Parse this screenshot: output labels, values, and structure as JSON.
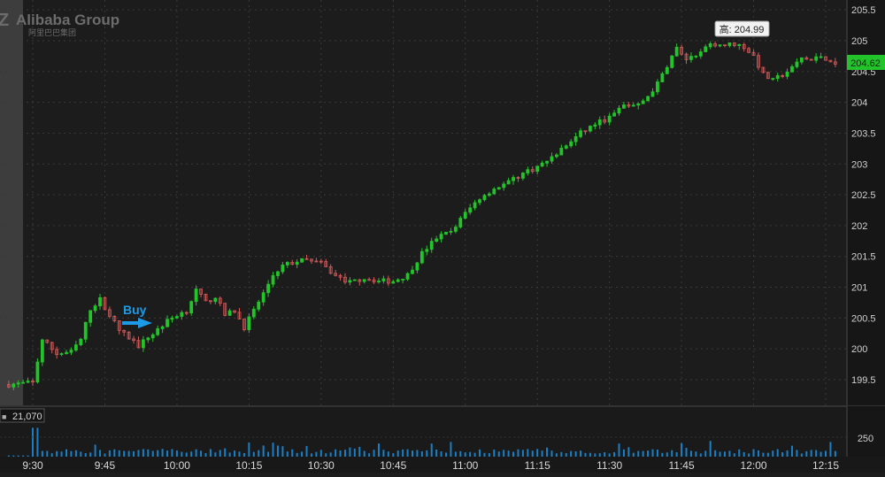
{
  "logo": {
    "brand": "Alibaba Group",
    "brand_cn": "阿里巴巴集团"
  },
  "volume_label": "21,070",
  "volume_axis_label": "250",
  "current_price_label": "204.62",
  "high_tag": "高: 204.99",
  "buy_annotation": "Buy",
  "colors": {
    "background": "#1c1c1c",
    "up": "#22c42a",
    "down": "#d45a5a",
    "volume": "#1a7fc4",
    "grid": "#3a3a3a",
    "buy_arrow": "#1e9be6",
    "price_tag": "#22c42a"
  },
  "chart_data": {
    "type": "candlestick",
    "interval": "1 minute",
    "y_ticks": [
      "205.5",
      "205",
      "204.5",
      "204",
      "203.5",
      "203",
      "202.5",
      "202",
      "201.5",
      "201",
      "200.5",
      "200",
      "199.5"
    ],
    "x_ticks": [
      "9:30",
      "9:45",
      "10:00",
      "10:15",
      "10:30",
      "10:45",
      "11:00",
      "11:15",
      "11:30",
      "11:45",
      "12:00",
      "12:15"
    ],
    "ylim": [
      199.2,
      205.65
    ],
    "time_range": [
      "9:30",
      "12:17"
    ],
    "high": 204.99,
    "last": 204.62,
    "volume_ylim": [
      0,
      400
    ],
    "price_path": [
      [
        "9:25",
        199.42
      ],
      [
        "9:30",
        199.45
      ],
      [
        "9:32",
        200.15
      ],
      [
        "9:35",
        199.92
      ],
      [
        "9:38",
        199.95
      ],
      [
        "9:40",
        200.15
      ],
      [
        "9:42",
        200.65
      ],
      [
        "9:44",
        200.8
      ],
      [
        "9:46",
        200.55
      ],
      [
        "9:48",
        200.3
      ],
      [
        "9:50",
        200.18
      ],
      [
        "9:52",
        200.05
      ],
      [
        "9:55",
        200.25
      ],
      [
        "9:58",
        200.45
      ],
      [
        "10:00",
        200.55
      ],
      [
        "10:02",
        200.62
      ],
      [
        "10:04",
        200.95
      ],
      [
        "10:06",
        200.75
      ],
      [
        "10:08",
        200.85
      ],
      [
        "10:10",
        200.55
      ],
      [
        "10:12",
        200.62
      ],
      [
        "10:14",
        200.35
      ],
      [
        "10:16",
        200.62
      ],
      [
        "10:18",
        200.9
      ],
      [
        "10:20",
        201.2
      ],
      [
        "10:22",
        201.35
      ],
      [
        "10:25",
        201.42
      ],
      [
        "10:28",
        201.45
      ],
      [
        "10:30",
        201.38
      ],
      [
        "10:33",
        201.18
      ],
      [
        "10:36",
        201.08
      ],
      [
        "10:39",
        201.15
      ],
      [
        "10:42",
        201.1
      ],
      [
        "10:45",
        201.1
      ],
      [
        "10:48",
        201.2
      ],
      [
        "10:51",
        201.55
      ],
      [
        "10:54",
        201.8
      ],
      [
        "10:57",
        201.9
      ],
      [
        "11:00",
        202.2
      ],
      [
        "11:03",
        202.45
      ],
      [
        "11:06",
        202.6
      ],
      [
        "11:09",
        202.7
      ],
      [
        "11:12",
        202.85
      ],
      [
        "11:15",
        202.95
      ],
      [
        "11:18",
        203.1
      ],
      [
        "11:21",
        203.3
      ],
      [
        "11:24",
        203.5
      ],
      [
        "11:27",
        203.65
      ],
      [
        "11:30",
        203.75
      ],
      [
        "11:33",
        203.95
      ],
      [
        "11:36",
        203.95
      ],
      [
        "11:38",
        204.1
      ],
      [
        "11:40",
        204.3
      ],
      [
        "11:42",
        204.6
      ],
      [
        "11:44",
        204.88
      ],
      [
        "11:46",
        204.7
      ],
      [
        "11:48",
        204.72
      ],
      [
        "11:50",
        204.88
      ],
      [
        "11:52",
        204.95
      ],
      [
        "11:54",
        204.93
      ],
      [
        "11:56",
        204.95
      ],
      [
        "11:58",
        204.9
      ],
      [
        "12:00",
        204.75
      ],
      [
        "12:02",
        204.45
      ],
      [
        "12:04",
        204.35
      ],
      [
        "12:06",
        204.45
      ],
      [
        "12:08",
        204.55
      ],
      [
        "12:10",
        204.72
      ],
      [
        "12:12",
        204.68
      ],
      [
        "12:14",
        204.75
      ],
      [
        "12:16",
        204.68
      ],
      [
        "12:17",
        204.62
      ]
    ],
    "markers": [
      {
        "label": "Buy",
        "time": "9:54",
        "price": 200.4
      },
      {
        "label": "高: 204.99",
        "time": "11:54",
        "price": 204.99
      }
    ]
  }
}
